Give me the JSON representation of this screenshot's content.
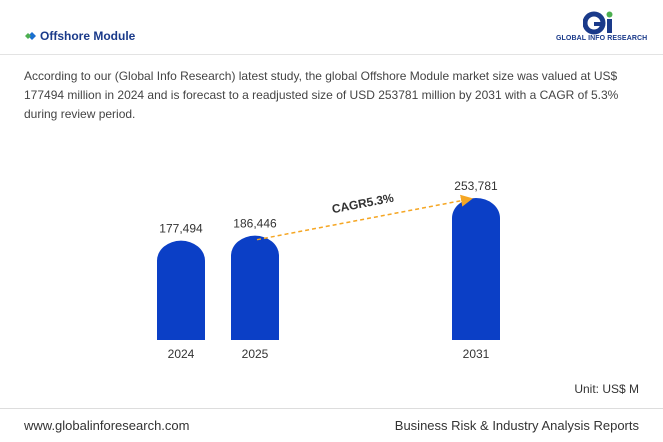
{
  "header": {
    "title": "Offshore Module",
    "logo": "GLOBAL INFO RESEARCH"
  },
  "description": "According to our (Global Info Research) latest study, the global Offshore Module market size was valued at US$ 177494 million in 2024 and is forecast to a readjusted size of USD 253781 million by 2031 with a CAGR of 5.3% during review period.",
  "chart_data": {
    "type": "bar",
    "categories": [
      "2024",
      "2025",
      "2031"
    ],
    "values": [
      177494,
      186446,
      253781
    ],
    "value_labels": [
      "177,494",
      "186,446",
      "253,781"
    ],
    "color": "#0b3fc6",
    "annotation": "CAGR5.3%",
    "unit_label": "Unit: US$ M"
  },
  "footer": {
    "url": "www.globalinforesearch.com",
    "tagline": "Business Risk & Industry Analysis Reports"
  }
}
